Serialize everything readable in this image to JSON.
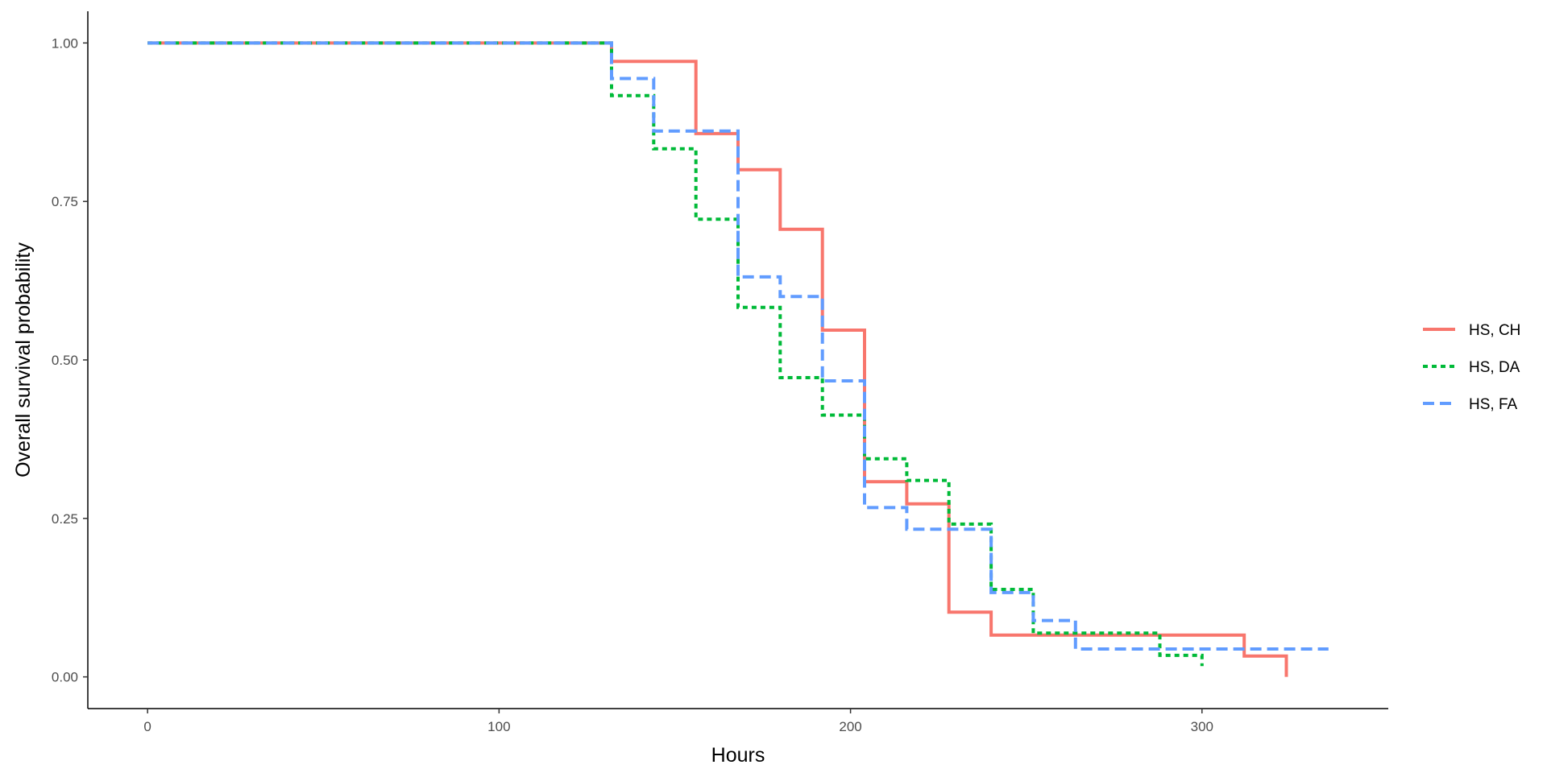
{
  "chart_data": {
    "type": "line",
    "step": true,
    "title": "",
    "xlabel": "Hours",
    "ylabel": "Overall survival probability",
    "xlim": [
      -17,
      353
    ],
    "ylim": [
      -0.05,
      1.05
    ],
    "x_ticks": [
      0,
      100,
      200,
      300
    ],
    "y_ticks": [
      0,
      0.25,
      0.5,
      0.75,
      1.0
    ],
    "x_tick_labels": [
      "0",
      "100",
      "200",
      "300"
    ],
    "y_tick_labels": [
      "0.00",
      "0.25",
      "0.50",
      "0.75",
      "1.00"
    ],
    "grid": false,
    "legend_position": "right",
    "series": [
      {
        "name": "HS, CH",
        "color": "#F8766D",
        "line_style": "solid",
        "x": [
          0,
          132,
          156,
          168,
          180,
          192,
          204,
          216,
          228,
          240,
          312,
          324
        ],
        "y": [
          1.0,
          0.971,
          0.857,
          0.8,
          0.706,
          0.547,
          0.308,
          0.273,
          0.102,
          0.066,
          0.033,
          0.0
        ],
        "end_x": 324
      },
      {
        "name": "HS, DA",
        "color": "#00BA38",
        "line_style": "dotted",
        "x": [
          0,
          132,
          144,
          156,
          168,
          180,
          192,
          204,
          216,
          228,
          240,
          252,
          288,
          300
        ],
        "y": [
          1.0,
          0.917,
          0.833,
          0.722,
          0.583,
          0.472,
          0.413,
          0.344,
          0.31,
          0.241,
          0.138,
          0.069,
          0.034,
          0.017
        ],
        "end_x": 300
      },
      {
        "name": "HS, FA",
        "color": "#619CFF",
        "line_style": "dashed",
        "x": [
          0,
          132,
          144,
          168,
          180,
          192,
          204,
          216,
          240,
          252,
          264
        ],
        "y": [
          1.0,
          0.944,
          0.861,
          0.631,
          0.6,
          0.467,
          0.267,
          0.233,
          0.133,
          0.089,
          0.044
        ],
        "end_x": 336
      }
    ]
  }
}
